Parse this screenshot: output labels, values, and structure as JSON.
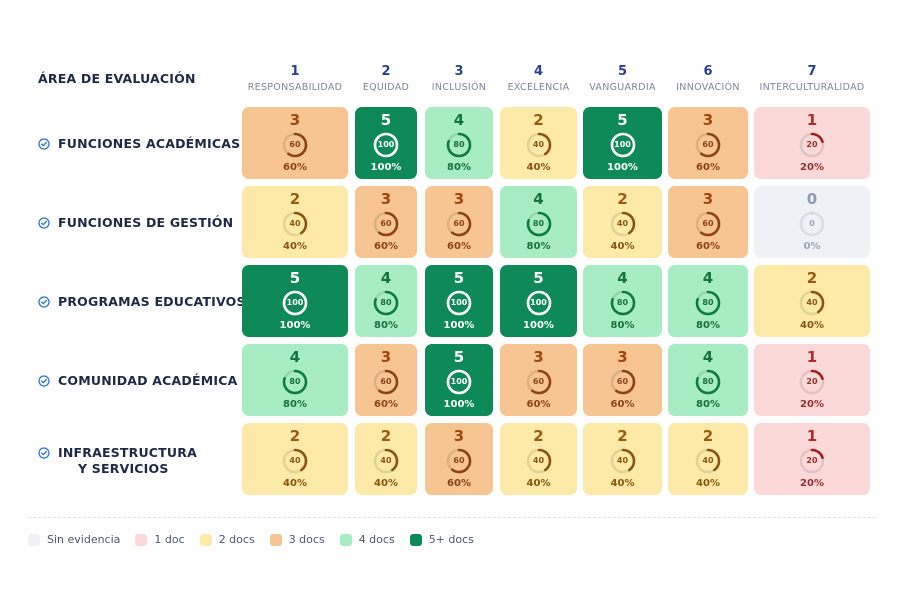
{
  "header": {
    "area_title": "ÁREA DE EVALUACIÓN"
  },
  "columns": [
    {
      "num": "1",
      "name": "RESPONSABILIDAD"
    },
    {
      "num": "2",
      "name": "EQUIDAD"
    },
    {
      "num": "3",
      "name": "INCLUSIÓN"
    },
    {
      "num": "4",
      "name": "EXCELENCIA"
    },
    {
      "num": "5",
      "name": "VANGUARDIA"
    },
    {
      "num": "6",
      "name": "INNOVACIÓN"
    },
    {
      "num": "7",
      "name": "INTERCULTURALIDAD"
    }
  ],
  "rows": [
    {
      "label": "FUNCIONES ACADÉMICAS",
      "icon": "check-circle-icon",
      "values": [
        3,
        5,
        4,
        2,
        5,
        3,
        1
      ]
    },
    {
      "label": "FUNCIONES DE GESTIÓN",
      "icon": "check-circle-icon",
      "values": [
        2,
        3,
        3,
        4,
        2,
        3,
        0
      ]
    },
    {
      "label": "PROGRAMAS EDUCATIVOS",
      "icon": "check-circle-icon",
      "values": [
        5,
        4,
        5,
        5,
        4,
        4,
        2
      ]
    },
    {
      "label": "COMUNIDAD ACADÉMICA",
      "icon": "check-circle-icon",
      "values": [
        4,
        3,
        5,
        3,
        3,
        4,
        1
      ]
    },
    {
      "label": "INFRAESTRUCTURA Y SERVICIOS",
      "icon": "check-circle-icon",
      "values": [
        2,
        2,
        3,
        2,
        2,
        2,
        1
      ]
    }
  ],
  "legend": [
    {
      "label": "Sin evidencia",
      "color": "#eef1f6"
    },
    {
      "label": "1 doc",
      "color": "#fcd9d9"
    },
    {
      "label": "2 docs",
      "color": "#fdeaa8"
    },
    {
      "label": "3 docs",
      "color": "#f7c592"
    },
    {
      "label": "4 docs",
      "color": "#a8ecc3"
    },
    {
      "label": "5+ docs",
      "color": "#0d8a58"
    }
  ],
  "level_colors": {
    "0": {
      "bg": "#eef1f6",
      "ring": "#c9d0dc"
    },
    "1": {
      "bg": "#fcd9d9",
      "ring": "#a01f1f"
    },
    "2": {
      "bg": "#fdeaa8",
      "ring": "#8a5414"
    },
    "3": {
      "bg": "#f7c592",
      "ring": "#8d4318"
    },
    "4": {
      "bg": "#a8ecc3",
      "ring": "#0f7a46"
    },
    "5": {
      "bg": "#0d8a58",
      "ring": "#ffffff"
    }
  }
}
